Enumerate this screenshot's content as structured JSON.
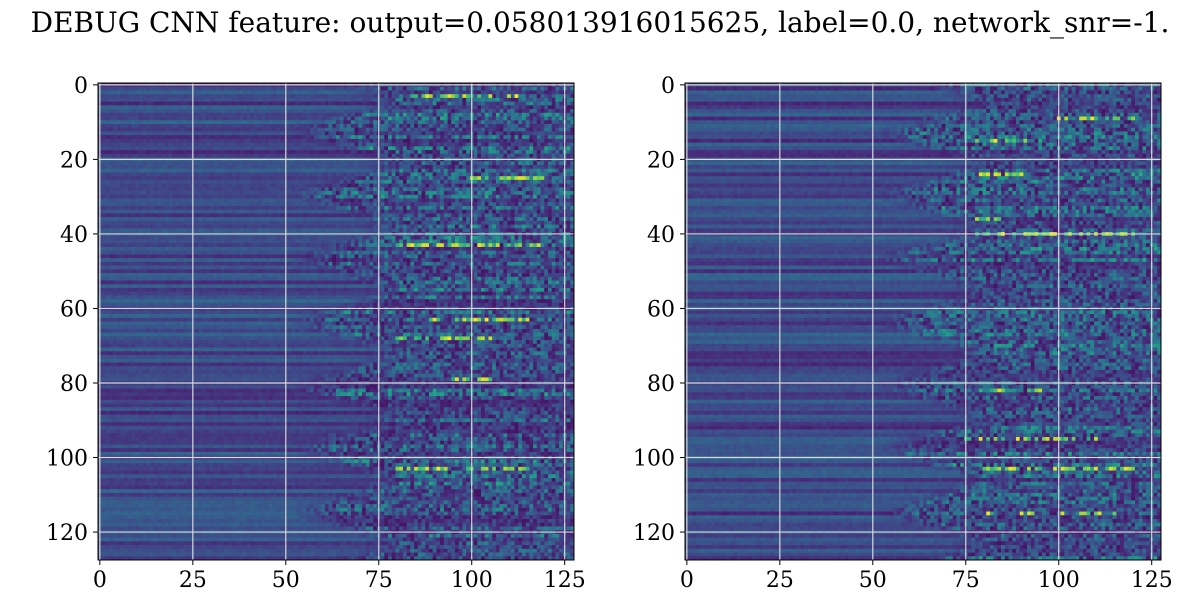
{
  "title": "DEBUG CNN feature: output=0.058013916015625, label=0.0, network_snr=-1.",
  "chart_data": [
    {
      "type": "heatmap",
      "rows": 128,
      "cols": 128,
      "xlim": [
        0,
        127
      ],
      "ylim": [
        127,
        0
      ],
      "xticks": [
        0,
        25,
        50,
        75,
        100,
        125
      ],
      "yticks": [
        0,
        20,
        40,
        60,
        80,
        100,
        120
      ],
      "grid": true,
      "colormap": "viridis",
      "description_values": "spectrogram-like feature map: low, row-banded values for columns 0-70, noisy higher values for columns 75-127 with bright spots near rows 3, 43, 68, 103"
    },
    {
      "type": "heatmap",
      "rows": 128,
      "cols": 128,
      "xlim": [
        0,
        127
      ],
      "ylim": [
        127,
        0
      ],
      "xticks": [
        0,
        25,
        50,
        75,
        100,
        125
      ],
      "yticks": [
        0,
        20,
        40,
        60,
        80,
        100,
        120
      ],
      "grid": true,
      "colormap": "viridis"
    }
  ]
}
